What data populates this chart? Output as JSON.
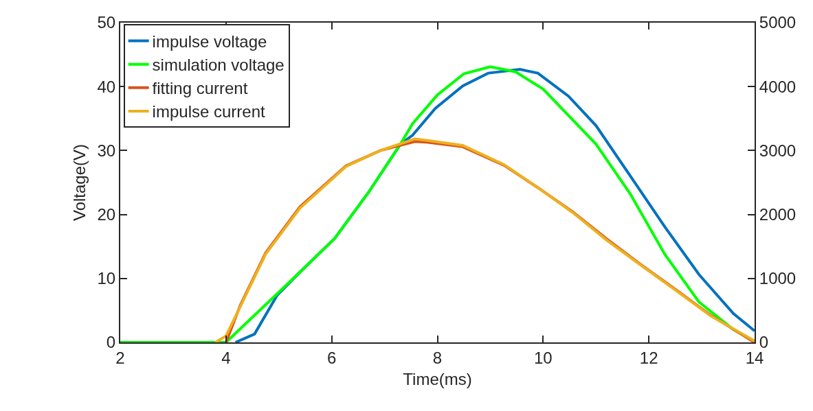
{
  "chart_data": {
    "type": "line",
    "xlabel": "Time(ms)",
    "ylabel": "Voltage(V)",
    "xlim": [
      2,
      14
    ],
    "xticks": [
      2,
      4,
      6,
      8,
      10,
      12,
      14
    ],
    "ylim": [
      0,
      50
    ],
    "yticks": [
      0,
      10,
      20,
      30,
      40,
      50
    ],
    "y2lim": [
      0,
      5000
    ],
    "y2ticks": [
      0,
      1000,
      2000,
      3000,
      4000,
      5000
    ],
    "grid": false,
    "legend": "top left",
    "marker": "none",
    "line_style": "solid",
    "series": [
      {
        "name": "impulse voltage",
        "color": "#0072bd",
        "x": [
          4.18,
          4.54,
          4.97,
          5.4,
          6.06,
          6.7,
          7.3,
          7.53,
          7.96,
          8.48,
          8.96,
          9.56,
          9.9,
          10.48,
          11.0,
          11.65,
          12.3,
          12.95,
          13.6,
          14.0
        ],
        "values": [
          0,
          1.3,
          7.4,
          11,
          16.3,
          23.5,
          31,
          32.4,
          36.6,
          40.1,
          42.1,
          42.7,
          42.1,
          38.5,
          33.9,
          26,
          18.1,
          10.6,
          4.5,
          1.8
        ]
      },
      {
        "name": "simulation voltage",
        "color": "#00ff00",
        "x": [
          2,
          4.0,
          5.4,
          6.06,
          6.7,
          7.3,
          7.53,
          8.0,
          8.5,
          9.0,
          9.48,
          10.0,
          11.0,
          11.65,
          12.3,
          12.95,
          13.6,
          14.0
        ],
        "values": [
          0,
          0,
          11,
          16.3,
          23.5,
          31,
          34.2,
          38.7,
          42,
          43.1,
          42.3,
          39.6,
          31,
          23.2,
          13.8,
          6.3,
          2.0,
          0.2
        ]
      },
      {
        "name": "fitting current",
        "color": "#d95319",
        "axis": "y2",
        "x": [
          4.0,
          4.27,
          4.75,
          5.4,
          6.27,
          6.92,
          7.57,
          7.8,
          8.48,
          9.26,
          9.9,
          10.56,
          11.2,
          11.86,
          12.5,
          13.16,
          14.0
        ],
        "values": [
          0,
          580,
          1400,
          2120,
          2760,
          3000,
          3140,
          3130,
          3060,
          2770,
          2420,
          2040,
          1620,
          1210,
          830,
          430,
          0
        ]
      },
      {
        "name": "impulse current",
        "color": "#edb120",
        "axis": "y2",
        "x": [
          3.8,
          4.0,
          4.27,
          4.75,
          5.4,
          6.27,
          6.92,
          7.57,
          7.79,
          8.48,
          9.26,
          9.9,
          10.56,
          11.2,
          11.86,
          12.5,
          13.16,
          14.0
        ],
        "values": [
          0,
          100,
          560,
          1380,
          2100,
          2750,
          3000,
          3180,
          3160,
          3080,
          2780,
          2420,
          2030,
          1600,
          1200,
          820,
          420,
          20
        ]
      }
    ]
  }
}
